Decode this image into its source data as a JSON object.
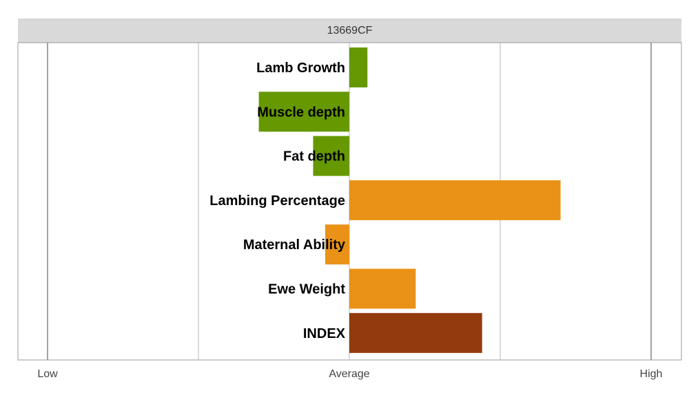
{
  "chart_data": {
    "type": "bar",
    "orientation": "horizontal",
    "title": "13669CF",
    "categories": [
      "Lamb Growth",
      "Muscle depth",
      "Fat depth",
      "Lambing Percentage",
      "Maternal Ability",
      "Ewe Weight",
      "INDEX"
    ],
    "values": [
      0.12,
      -0.6,
      -0.24,
      1.4,
      -0.16,
      0.44,
      0.88
    ],
    "bar_colors": [
      "#669900",
      "#669900",
      "#669900",
      "#ea9217",
      "#ea9217",
      "#ea9217",
      "#933b0e"
    ],
    "xlim": [
      -2,
      2
    ],
    "x_ticks": [
      {
        "value": -2,
        "label": "Low"
      },
      {
        "value": 0,
        "label": "Average"
      },
      {
        "value": 2,
        "label": "High"
      }
    ],
    "gridlines": [
      -2,
      -1,
      0,
      1,
      2
    ],
    "grid": true,
    "legend": "none"
  }
}
